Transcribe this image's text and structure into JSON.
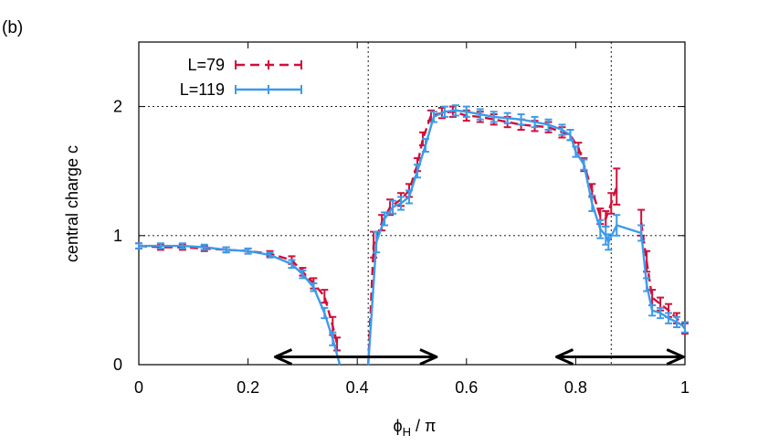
{
  "panel_label": "(b)",
  "chart_data": {
    "type": "line",
    "xlabel": "ϕH / π",
    "ylabel": "central charge c",
    "xlim": [
      0,
      1
    ],
    "ylim": [
      0,
      2.5
    ],
    "xticks": [
      0,
      0.2,
      0.4,
      0.6,
      0.8,
      1
    ],
    "xtick_labels": [
      "0",
      "0.2",
      "0.4",
      "0.6",
      "0.8",
      "1"
    ],
    "yticks": [
      0,
      1,
      2
    ],
    "ytick_labels": [
      "0",
      "1",
      "2"
    ],
    "grid": "dotted at x=0.42, x=0.865, y=1, y=2",
    "vlines": [
      0.42,
      0.865
    ],
    "hlines": [
      1,
      2
    ],
    "legend_position": "top-left",
    "arrows": [
      {
        "from": 0.25,
        "to": 0.545,
        "y": 0.06
      },
      {
        "from": 0.765,
        "to": 0.997,
        "y": 0.06
      }
    ],
    "series": [
      {
        "name": "L=79",
        "color": "#d0103a",
        "style": "dashed",
        "segments": [
          [
            {
              "x": 0.0,
              "y": 0.92,
              "err": 0.02
            },
            {
              "x": 0.04,
              "y": 0.91,
              "err": 0.02
            },
            {
              "x": 0.08,
              "y": 0.91,
              "err": 0.02
            },
            {
              "x": 0.12,
              "y": 0.9,
              "err": 0.02
            },
            {
              "x": 0.16,
              "y": 0.89,
              "err": 0.02
            },
            {
              "x": 0.2,
              "y": 0.88,
              "err": 0.02
            },
            {
              "x": 0.24,
              "y": 0.86,
              "err": 0.02
            },
            {
              "x": 0.28,
              "y": 0.81,
              "err": 0.03
            },
            {
              "x": 0.3,
              "y": 0.72,
              "err": 0.03
            },
            {
              "x": 0.32,
              "y": 0.63,
              "err": 0.04
            },
            {
              "x": 0.34,
              "y": 0.53,
              "err": 0.05
            },
            {
              "x": 0.355,
              "y": 0.3,
              "err": 0.07
            },
            {
              "x": 0.363,
              "y": 0.16,
              "err": 0.05
            }
          ],
          [
            {
              "x": 0.42,
              "y": 0.0,
              "err": 0.0
            },
            {
              "x": 0.43,
              "y": 0.93,
              "err": 0.1
            },
            {
              "x": 0.445,
              "y": 1.1,
              "err": 0.06
            },
            {
              "x": 0.46,
              "y": 1.22,
              "err": 0.06
            },
            {
              "x": 0.48,
              "y": 1.28,
              "err": 0.05
            },
            {
              "x": 0.495,
              "y": 1.35,
              "err": 0.05
            },
            {
              "x": 0.51,
              "y": 1.55,
              "err": 0.05
            },
            {
              "x": 0.52,
              "y": 1.75,
              "err": 0.05
            },
            {
              "x": 0.535,
              "y": 1.93,
              "err": 0.04
            },
            {
              "x": 0.555,
              "y": 1.95,
              "err": 0.04
            },
            {
              "x": 0.575,
              "y": 1.96,
              "err": 0.04
            },
            {
              "x": 0.6,
              "y": 1.93,
              "err": 0.04
            },
            {
              "x": 0.625,
              "y": 1.92,
              "err": 0.04
            },
            {
              "x": 0.65,
              "y": 1.9,
              "err": 0.04
            },
            {
              "x": 0.675,
              "y": 1.88,
              "err": 0.04
            },
            {
              "x": 0.7,
              "y": 1.86,
              "err": 0.04
            },
            {
              "x": 0.725,
              "y": 1.85,
              "err": 0.04
            },
            {
              "x": 0.75,
              "y": 1.84,
              "err": 0.04
            },
            {
              "x": 0.775,
              "y": 1.8,
              "err": 0.04
            },
            {
              "x": 0.79,
              "y": 1.78,
              "err": 0.04
            },
            {
              "x": 0.805,
              "y": 1.68,
              "err": 0.04
            },
            {
              "x": 0.815,
              "y": 1.55,
              "err": 0.05
            },
            {
              "x": 0.83,
              "y": 1.35,
              "err": 0.05
            },
            {
              "x": 0.845,
              "y": 1.15,
              "err": 0.06
            },
            {
              "x": 0.855,
              "y": 1.13,
              "err": 0.06
            },
            {
              "x": 0.865,
              "y": 1.25,
              "err": 0.08
            },
            {
              "x": 0.875,
              "y": 1.38,
              "err": 0.14
            }
          ],
          [
            {
              "x": 0.92,
              "y": 1.1,
              "err": 0.1
            },
            {
              "x": 0.93,
              "y": 0.8,
              "err": 0.08
            },
            {
              "x": 0.94,
              "y": 0.52,
              "err": 0.06
            },
            {
              "x": 0.955,
              "y": 0.47,
              "err": 0.05
            },
            {
              "x": 0.97,
              "y": 0.42,
              "err": 0.05
            },
            {
              "x": 0.985,
              "y": 0.36,
              "err": 0.04
            },
            {
              "x": 1.0,
              "y": 0.28,
              "err": 0.04
            }
          ]
        ]
      },
      {
        "name": "L=119",
        "color": "#3d9be9",
        "style": "solid",
        "segments": [
          [
            {
              "x": 0.0,
              "y": 0.92,
              "err": 0.02
            },
            {
              "x": 0.04,
              "y": 0.92,
              "err": 0.02
            },
            {
              "x": 0.08,
              "y": 0.92,
              "err": 0.02
            },
            {
              "x": 0.12,
              "y": 0.91,
              "err": 0.02
            },
            {
              "x": 0.16,
              "y": 0.89,
              "err": 0.02
            },
            {
              "x": 0.2,
              "y": 0.88,
              "err": 0.02
            },
            {
              "x": 0.24,
              "y": 0.85,
              "err": 0.02
            },
            {
              "x": 0.28,
              "y": 0.78,
              "err": 0.03
            },
            {
              "x": 0.3,
              "y": 0.7,
              "err": 0.03
            },
            {
              "x": 0.32,
              "y": 0.6,
              "err": 0.03
            },
            {
              "x": 0.34,
              "y": 0.4,
              "err": 0.04
            },
            {
              "x": 0.355,
              "y": 0.2,
              "err": 0.05
            },
            {
              "x": 0.368,
              "y": 0.0,
              "err": 0.0
            }
          ],
          [
            {
              "x": 0.42,
              "y": 0.0,
              "err": 0.0
            },
            {
              "x": 0.435,
              "y": 0.95,
              "err": 0.08
            },
            {
              "x": 0.45,
              "y": 1.13,
              "err": 0.05
            },
            {
              "x": 0.465,
              "y": 1.22,
              "err": 0.05
            },
            {
              "x": 0.48,
              "y": 1.25,
              "err": 0.05
            },
            {
              "x": 0.495,
              "y": 1.3,
              "err": 0.05
            },
            {
              "x": 0.51,
              "y": 1.5,
              "err": 0.05
            },
            {
              "x": 0.525,
              "y": 1.7,
              "err": 0.05
            },
            {
              "x": 0.54,
              "y": 1.92,
              "err": 0.04
            },
            {
              "x": 0.56,
              "y": 1.96,
              "err": 0.04
            },
            {
              "x": 0.58,
              "y": 1.97,
              "err": 0.04
            },
            {
              "x": 0.6,
              "y": 1.96,
              "err": 0.04
            },
            {
              "x": 0.625,
              "y": 1.94,
              "err": 0.04
            },
            {
              "x": 0.65,
              "y": 1.92,
              "err": 0.04
            },
            {
              "x": 0.675,
              "y": 1.91,
              "err": 0.04
            },
            {
              "x": 0.7,
              "y": 1.9,
              "err": 0.04
            },
            {
              "x": 0.725,
              "y": 1.88,
              "err": 0.04
            },
            {
              "x": 0.75,
              "y": 1.86,
              "err": 0.04
            },
            {
              "x": 0.775,
              "y": 1.82,
              "err": 0.04
            },
            {
              "x": 0.79,
              "y": 1.78,
              "err": 0.04
            },
            {
              "x": 0.8,
              "y": 1.65,
              "err": 0.04
            },
            {
              "x": 0.815,
              "y": 1.55,
              "err": 0.04
            },
            {
              "x": 0.83,
              "y": 1.25,
              "err": 0.06
            },
            {
              "x": 0.845,
              "y": 1.05,
              "err": 0.07
            },
            {
              "x": 0.855,
              "y": 1.0,
              "err": 0.07
            },
            {
              "x": 0.86,
              "y": 0.95,
              "err": 0.06
            },
            {
              "x": 0.875,
              "y": 1.08,
              "err": 0.08
            },
            {
              "x": 0.92,
              "y": 1.02,
              "err": 0.06
            },
            {
              "x": 0.93,
              "y": 0.62,
              "err": 0.05
            },
            {
              "x": 0.94,
              "y": 0.42,
              "err": 0.04
            },
            {
              "x": 0.955,
              "y": 0.4,
              "err": 0.04
            },
            {
              "x": 0.97,
              "y": 0.36,
              "err": 0.04
            },
            {
              "x": 0.985,
              "y": 0.33,
              "err": 0.04
            },
            {
              "x": 1.0,
              "y": 0.29,
              "err": 0.04
            }
          ]
        ]
      }
    ]
  }
}
